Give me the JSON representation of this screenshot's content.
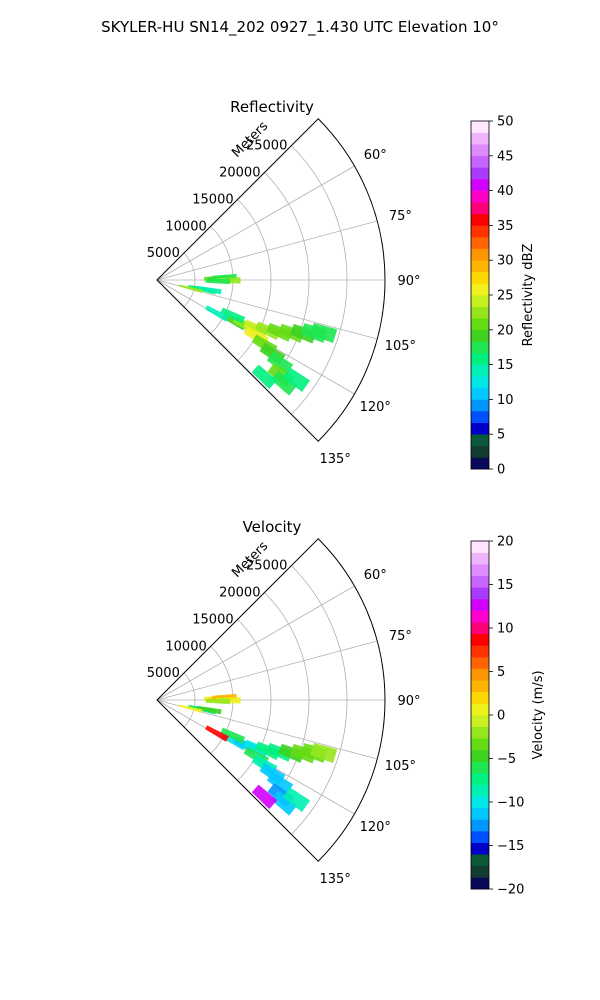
{
  "figure_title": "SKYLER-HU  SN14_202  0927_1.430 UTC Elevation 10°",
  "chart_data": [
    {
      "type": "polar-sector",
      "title": "Reflectivity",
      "range_label": "Meters",
      "range_ticks": [
        5000,
        10000,
        15000,
        20000,
        25000
      ],
      "range_tick_labels": [
        "5000",
        "10000",
        "15000",
        "20000",
        "25000"
      ],
      "range_max": 30000,
      "azimuth_range_deg": [
        45,
        135
      ],
      "azimuth_ticks": [
        60,
        75,
        90,
        105,
        120,
        135
      ],
      "azimuth_tick_labels": [
        "60°",
        "75°",
        "90°",
        "105°",
        "120°",
        "135°"
      ],
      "grid": true,
      "colorbar": {
        "label": "Reflectivity dBZ",
        "min": 0,
        "max": 50,
        "ticks": [
          0,
          5,
          10,
          15,
          20,
          25,
          30,
          35,
          40,
          45,
          50
        ],
        "tick_labels": [
          "0",
          "5",
          "10",
          "15",
          "20",
          "25",
          "30",
          "35",
          "40",
          "45",
          "50"
        ],
        "colors": [
          "#0a0a5a",
          "#133d33",
          "#0a5a3a",
          "#0000c8",
          "#0050ff",
          "#0096ff",
          "#00c8ff",
          "#00e6e6",
          "#00f0b4",
          "#00f080",
          "#1ee650",
          "#3cd21e",
          "#64dc14",
          "#96e61e",
          "#c8f01e",
          "#f0f01e",
          "#ffd700",
          "#ffb400",
          "#ff9600",
          "#ff6400",
          "#ff3200",
          "#ff0000",
          "#ff0078",
          "#ff00c8",
          "#d200ff",
          "#aa3cff",
          "#c864ff",
          "#dc8cff",
          "#f0b4ff",
          "#ffe6ff"
        ]
      },
      "echoes": [
        {
          "az": 88.5,
          "r": 7800,
          "value": 21
        },
        {
          "az": 89.2,
          "r": 8400,
          "value": 19
        },
        {
          "az": 87.8,
          "r": 8900,
          "value": 17
        },
        {
          "az": 90.3,
          "r": 9400,
          "value": 23
        },
        {
          "az": 91.0,
          "r": 8000,
          "value": 18
        },
        {
          "az": 101.0,
          "r": 5800,
          "value": 15
        },
        {
          "az": 101.8,
          "r": 6300,
          "value": 16
        },
        {
          "az": 100.5,
          "r": 7000,
          "value": 14
        },
        {
          "az": 118.0,
          "r": 11500,
          "value": 19
        },
        {
          "az": 117.0,
          "r": 13000,
          "value": 22
        },
        {
          "az": 116.0,
          "r": 14500,
          "value": 24
        },
        {
          "az": 114.5,
          "r": 16000,
          "value": 23
        },
        {
          "az": 113.0,
          "r": 17500,
          "value": 21
        },
        {
          "az": 111.5,
          "r": 19000,
          "value": 20
        },
        {
          "az": 110.0,
          "r": 20500,
          "value": 19
        },
        {
          "az": 108.5,
          "r": 21800,
          "value": 18
        },
        {
          "az": 107.5,
          "r": 23000,
          "value": 17
        },
        {
          "az": 119.5,
          "r": 15000,
          "value": 26
        },
        {
          "az": 121.0,
          "r": 16500,
          "value": 21
        },
        {
          "az": 122.5,
          "r": 18000,
          "value": 19
        },
        {
          "az": 124.0,
          "r": 19500,
          "value": 17
        },
        {
          "az": 127.5,
          "r": 20500,
          "value": 20
        },
        {
          "az": 129.0,
          "r": 21500,
          "value": 18
        },
        {
          "az": 125.5,
          "r": 22500,
          "value": 16
        },
        {
          "az": 132.0,
          "r": 19000,
          "value": 15
        },
        {
          "az": 115.0,
          "r": 11000,
          "value": 16
        },
        {
          "az": 119.0,
          "r": 9000,
          "value": 14
        },
        {
          "az": 104.0,
          "r": 4500,
          "value": 22
        }
      ]
    },
    {
      "type": "polar-sector",
      "title": "Velocity",
      "range_label": "Meters",
      "range_ticks": [
        5000,
        10000,
        15000,
        20000,
        25000
      ],
      "range_tick_labels": [
        "5000",
        "10000",
        "15000",
        "20000",
        "25000"
      ],
      "range_max": 30000,
      "azimuth_range_deg": [
        45,
        135
      ],
      "azimuth_ticks": [
        60,
        75,
        90,
        105,
        120,
        135
      ],
      "azimuth_tick_labels": [
        "60°",
        "75°",
        "90°",
        "105°",
        "120°",
        "135°"
      ],
      "grid": true,
      "colorbar": {
        "label": "Velocity (m/s)",
        "min": -20,
        "max": 20,
        "ticks": [
          -20,
          -15,
          -10,
          -5,
          0,
          5,
          10,
          15,
          20
        ],
        "tick_labels": [
          "−20",
          "−15",
          "−10",
          "−5",
          "0",
          "5",
          "10",
          "15",
          "20"
        ],
        "colors": [
          "#0a0a5a",
          "#133d33",
          "#0a5a3a",
          "#0000c8",
          "#0050ff",
          "#0096ff",
          "#00c8ff",
          "#00e6e6",
          "#00f0b4",
          "#00f080",
          "#1ee650",
          "#3cd21e",
          "#64dc14",
          "#96e61e",
          "#c8f01e",
          "#f0f01e",
          "#ffd700",
          "#ffb400",
          "#ff9600",
          "#ff6400",
          "#ff3200",
          "#ff0000",
          "#ff0078",
          "#ff00c8",
          "#d200ff",
          "#aa3cff",
          "#c864ff",
          "#dc8cff",
          "#f0b4ff",
          "#ffe6ff"
        ]
      },
      "echoes": [
        {
          "az": 88.5,
          "r": 7800,
          "value": 1
        },
        {
          "az": 89.2,
          "r": 8400,
          "value": 2
        },
        {
          "az": 87.8,
          "r": 8900,
          "value": 3
        },
        {
          "az": 90.3,
          "r": 9400,
          "value": 1
        },
        {
          "az": 91.0,
          "r": 8000,
          "value": -2
        },
        {
          "az": 101.0,
          "r": 5800,
          "value": -6
        },
        {
          "az": 101.8,
          "r": 6300,
          "value": -7
        },
        {
          "az": 100.5,
          "r": 7000,
          "value": -5
        },
        {
          "az": 118.0,
          "r": 11500,
          "value": -10
        },
        {
          "az": 117.0,
          "r": 13000,
          "value": -12
        },
        {
          "az": 116.0,
          "r": 14500,
          "value": -10
        },
        {
          "az": 114.5,
          "r": 16000,
          "value": -8
        },
        {
          "az": 113.0,
          "r": 17500,
          "value": -7
        },
        {
          "az": 111.5,
          "r": 19000,
          "value": -5
        },
        {
          "az": 110.0,
          "r": 20500,
          "value": -4
        },
        {
          "az": 108.5,
          "r": 21800,
          "value": -3
        },
        {
          "az": 107.5,
          "r": 23000,
          "value": -2
        },
        {
          "az": 119.5,
          "r": 15000,
          "value": -6
        },
        {
          "az": 121.0,
          "r": 16500,
          "value": -9
        },
        {
          "az": 122.5,
          "r": 18000,
          "value": -11
        },
        {
          "az": 124.0,
          "r": 19500,
          "value": -12
        },
        {
          "az": 127.5,
          "r": 20500,
          "value": -13
        },
        {
          "az": 129.0,
          "r": 21500,
          "value": -11
        },
        {
          "az": 125.5,
          "r": 22500,
          "value": -9
        },
        {
          "az": 132.0,
          "r": 19000,
          "value": 12
        },
        {
          "az": 115.0,
          "r": 11000,
          "value": -6
        },
        {
          "az": 119.0,
          "r": 9000,
          "value": 8
        },
        {
          "az": 104.0,
          "r": 4500,
          "value": 0
        }
      ]
    }
  ]
}
